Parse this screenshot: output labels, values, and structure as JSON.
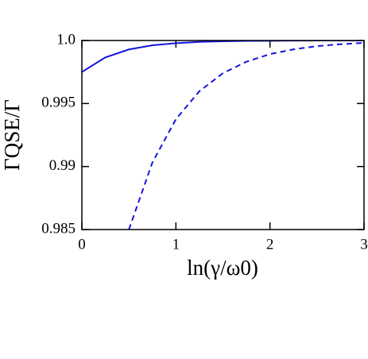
{
  "chart_data": {
    "type": "line",
    "x_label": "ln(γ/ω0)",
    "y_label": "ΓQSE/Γ",
    "x": [
      0,
      0.25,
      0.5,
      0.75,
      1,
      1.25,
      1.5,
      1.75,
      2,
      2.25,
      2.5,
      2.75,
      3
    ],
    "series": [
      {
        "color": "#1414e0",
        "dash": false,
        "values": [
          0.9975,
          0.99866,
          0.99929,
          0.99962,
          0.99979,
          0.99989,
          0.99994,
          0.99997,
          0.99998,
          0.99999,
          1,
          1,
          1
        ]
      },
      {
        "color": "#1414e0",
        "dash": true,
        "values": [
          null,
          null,
          0.985,
          0.99032,
          0.99376,
          0.99598,
          0.9974,
          0.99832,
          0.99892,
          0.9993,
          0.99955,
          0.99971,
          0.99981
        ]
      }
    ],
    "xlim": [
      0,
      3
    ],
    "xticks": [
      0,
      1,
      2,
      3
    ],
    "ylim": [
      0.985,
      1.0
    ],
    "yticks": [
      0.985,
      0.99,
      0.995,
      {
        "value": 1.0,
        "label": "1.0"
      }
    ],
    "grid": false
  }
}
